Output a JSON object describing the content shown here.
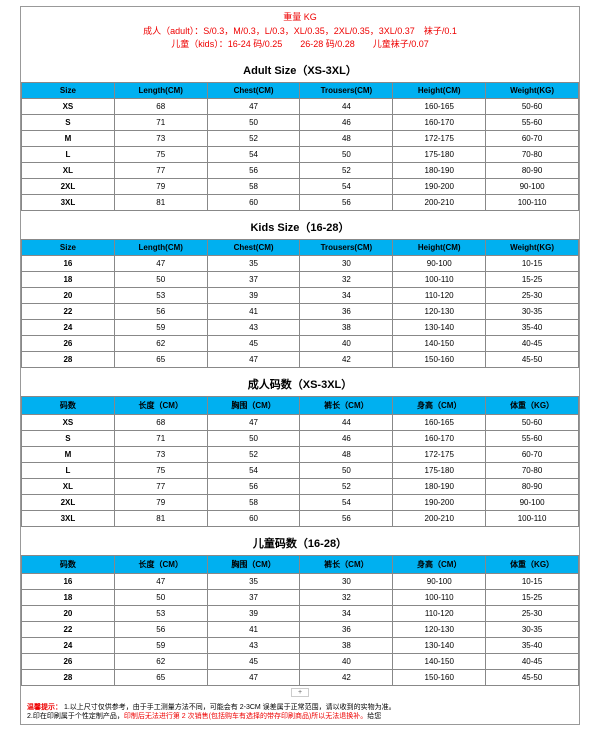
{
  "header": {
    "title": "重量 KG",
    "line1": "成人（adult）：S/0.3，M/0.3，L/0.3，XL/0.35，2XL/0.35，3XL/0.37　袜子/0.1",
    "line2": "儿童（kids）：16-24 码/0.25　　26-28 码/0.28　　儿童袜子/0.07"
  },
  "colors": {
    "header_bg": "#00b0f0",
    "border": "#888888",
    "accent_text": "#ee0000",
    "text": "#000000",
    "background": "#ffffff"
  },
  "tables": [
    {
      "title": "Adult Size（XS-3XL）",
      "columns": [
        "Size",
        "Length(CM)",
        "Chest(CM)",
        "Trousers(CM)",
        "Height(CM)",
        "Weight(KG)"
      ],
      "rows": [
        [
          "XS",
          "68",
          "47",
          "44",
          "160-165",
          "50-60"
        ],
        [
          "S",
          "71",
          "50",
          "46",
          "160-170",
          "55-60"
        ],
        [
          "M",
          "73",
          "52",
          "48",
          "172-175",
          "60-70"
        ],
        [
          "L",
          "75",
          "54",
          "50",
          "175-180",
          "70-80"
        ],
        [
          "XL",
          "77",
          "56",
          "52",
          "180-190",
          "80-90"
        ],
        [
          "2XL",
          "79",
          "58",
          "54",
          "190-200",
          "90-100"
        ],
        [
          "3XL",
          "81",
          "60",
          "56",
          "200-210",
          "100-110"
        ]
      ]
    },
    {
      "title": "Kids Size（16-28）",
      "columns": [
        "Size",
        "Length(CM)",
        "Chest(CM)",
        "Trousers(CM)",
        "Height(CM)",
        "Weight(KG)"
      ],
      "rows": [
        [
          "16",
          "47",
          "35",
          "30",
          "90-100",
          "10-15"
        ],
        [
          "18",
          "50",
          "37",
          "32",
          "100-110",
          "15-25"
        ],
        [
          "20",
          "53",
          "39",
          "34",
          "110-120",
          "25-30"
        ],
        [
          "22",
          "56",
          "41",
          "36",
          "120-130",
          "30-35"
        ],
        [
          "24",
          "59",
          "43",
          "38",
          "130-140",
          "35-40"
        ],
        [
          "26",
          "62",
          "45",
          "40",
          "140-150",
          "40-45"
        ],
        [
          "28",
          "65",
          "47",
          "42",
          "150-160",
          "45-50"
        ]
      ]
    },
    {
      "title": "成人码数（XS-3XL）",
      "columns": [
        "码数",
        "长度（CM）",
        "胸围（CM）",
        "裤长（CM）",
        "身高（CM）",
        "体重（KG）"
      ],
      "rows": [
        [
          "XS",
          "68",
          "47",
          "44",
          "160-165",
          "50-60"
        ],
        [
          "S",
          "71",
          "50",
          "46",
          "160-170",
          "55-60"
        ],
        [
          "M",
          "73",
          "52",
          "48",
          "172-175",
          "60-70"
        ],
        [
          "L",
          "75",
          "54",
          "50",
          "175-180",
          "70-80"
        ],
        [
          "XL",
          "77",
          "56",
          "52",
          "180-190",
          "80-90"
        ],
        [
          "2XL",
          "79",
          "58",
          "54",
          "190-200",
          "90-100"
        ],
        [
          "3XL",
          "81",
          "60",
          "56",
          "200-210",
          "100-110"
        ]
      ]
    },
    {
      "title": "儿童码数（16-28）",
      "columns": [
        "码数",
        "长度（CM）",
        "胸围（CM）",
        "裤长（CM）",
        "身高（CM）",
        "体重（KG）"
      ],
      "rows": [
        [
          "16",
          "47",
          "35",
          "30",
          "90-100",
          "10-15"
        ],
        [
          "18",
          "50",
          "37",
          "32",
          "100-110",
          "15-25"
        ],
        [
          "20",
          "53",
          "39",
          "34",
          "110-120",
          "25-30"
        ],
        [
          "22",
          "56",
          "41",
          "36",
          "120-130",
          "30-35"
        ],
        [
          "24",
          "59",
          "43",
          "38",
          "130-140",
          "35-40"
        ],
        [
          "26",
          "62",
          "45",
          "40",
          "140-150",
          "40-45"
        ],
        [
          "28",
          "65",
          "47",
          "42",
          "150-160",
          "45-50"
        ]
      ]
    }
  ],
  "pager": "+",
  "footer": {
    "label": "温馨提示：",
    "line1_a": "1.以上尺寸仅供参考，由于手工测量方法不同，可能会有 2-3CM 误差属于正常范围，请以收到的实物为准。",
    "line2_a": "2.印在印刷属于个性定制产品，",
    "line2_red": "印制后无法进行第 2 次销售(包括购车有选择的带存印刷商品)所以无法退换补。",
    "line2_b": "给您"
  }
}
